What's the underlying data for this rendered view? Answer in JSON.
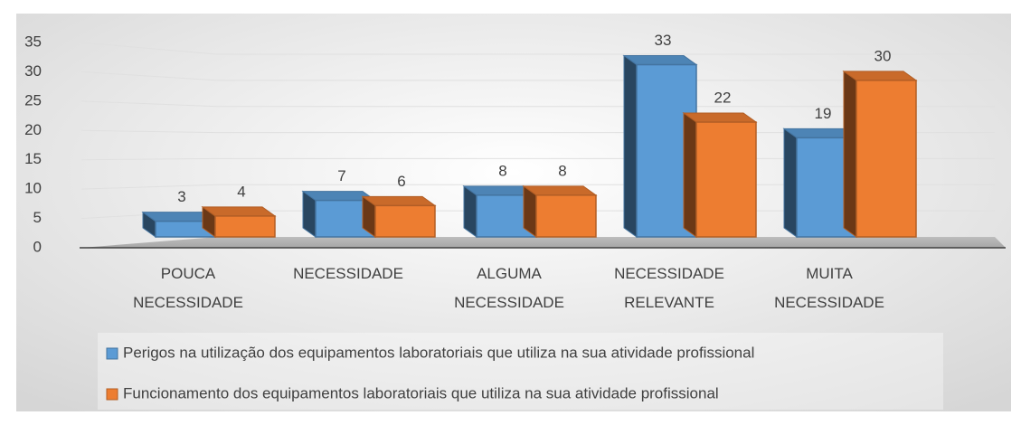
{
  "chart_data": {
    "type": "bar",
    "categories": [
      "POUCA NECESSIDADE",
      "NECESSIDADE",
      "ALGUMA NECESSIDADE",
      "NECESSIDADE RELEVANTE",
      "MUITA NECESSIDADE"
    ],
    "series": [
      {
        "name": "Perigos na utilização dos equipamentos laboratoriais que utiliza na sua atividade profissional",
        "color": "#5b9bd5",
        "values": [
          3,
          7,
          8,
          33,
          19
        ]
      },
      {
        "name": "Funcionamento dos equipamentos laboratoriais que utiliza na sua atividade profissional",
        "color": "#ed7d31",
        "values": [
          4,
          6,
          8,
          22,
          30
        ]
      }
    ],
    "ylim": [
      0,
      35
    ],
    "yticks": [
      0,
      5,
      10,
      15,
      20,
      25,
      30,
      35
    ],
    "grid": true,
    "legend": "bottom"
  }
}
